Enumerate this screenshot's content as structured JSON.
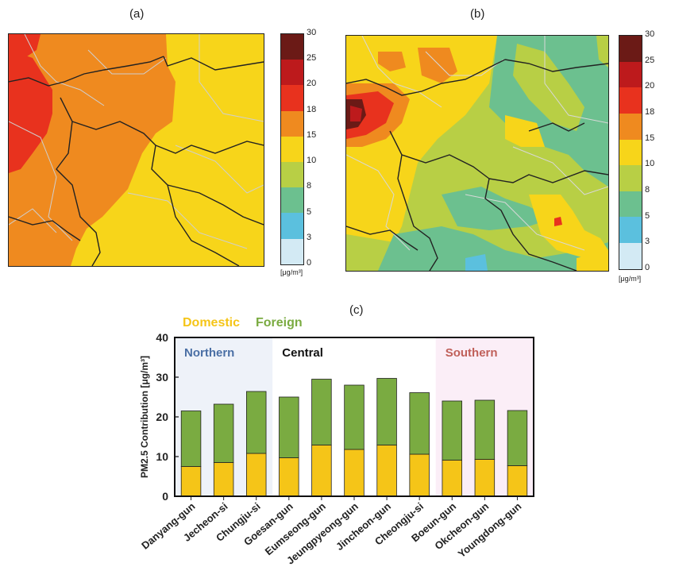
{
  "panels": {
    "a": "(a)",
    "b": "(b)",
    "c": "(c)"
  },
  "colorbar": {
    "ticks": [
      "30",
      "25",
      "20",
      "18",
      "15",
      "10",
      "8",
      "5",
      "3",
      "0"
    ],
    "colors": [
      "#6b1a16",
      "#bd1a1c",
      "#e8321e",
      "#ef8a1f",
      "#f7d51a",
      "#b8cf45",
      "#6cc08f",
      "#5bc0de",
      "#d3eaf4"
    ],
    "unit": "[μg/m³]"
  },
  "legend": {
    "domestic": "Domestic",
    "foreign": "Foreign",
    "domestic_color": "#f5c518",
    "foreign_color": "#7aab41"
  },
  "regions": [
    {
      "label": "Northern",
      "color": "#4a6fa5",
      "bg": "#eef2f9"
    },
    {
      "label": "Central",
      "color": "#111111",
      "bg": "#ffffff"
    },
    {
      "label": "Southern",
      "color": "#c0605a",
      "bg": "#fbeef7"
    }
  ],
  "chart_data": {
    "type": "bar",
    "stacked": true,
    "categories": [
      "Danyang-gun",
      "Jecheon-si",
      "Chungju-si",
      "Goesan-gun",
      "Eumseong-gun",
      "Jeungpyeong-gun",
      "Jincheon-gun",
      "Cheongju-si",
      "Boeun-gun",
      "Okcheon-gun",
      "Youngdong-gun"
    ],
    "series": [
      {
        "name": "Domestic",
        "values": [
          7.5,
          8.5,
          10.8,
          9.7,
          12.9,
          11.8,
          12.9,
          10.6,
          9.1,
          9.3,
          7.7
        ]
      },
      {
        "name": "Foreign",
        "values": [
          14.0,
          14.7,
          15.6,
          15.3,
          16.6,
          16.2,
          16.8,
          15.5,
          14.9,
          14.9,
          13.9
        ]
      }
    ],
    "region_groups": [
      [
        0,
        2
      ],
      [
        3,
        7
      ],
      [
        8,
        10
      ]
    ],
    "ylabel": "PM2.5 Contribution [μg/m³]",
    "yticks": [
      0,
      10,
      20,
      30,
      40
    ],
    "ylim": [
      0,
      40
    ],
    "grid": false
  }
}
